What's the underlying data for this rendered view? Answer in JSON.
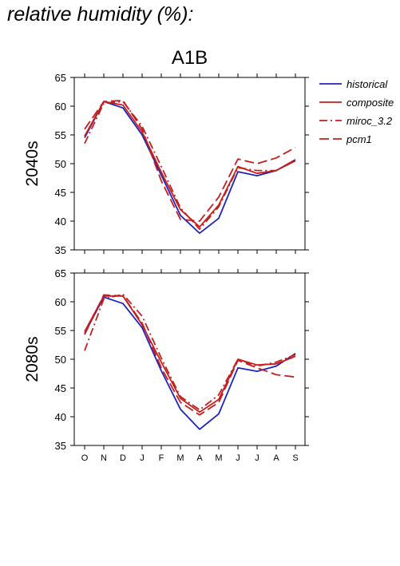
{
  "heading": "relative humidity (%):",
  "chart_data": {
    "type": "line",
    "title": "A1B",
    "months": [
      "O",
      "N",
      "D",
      "J",
      "F",
      "M",
      "A",
      "M",
      "J",
      "J",
      "A",
      "S"
    ],
    "ylim": [
      35,
      65
    ],
    "yticks": [
      35,
      40,
      45,
      50,
      55,
      60,
      65
    ],
    "legend": {
      "placement": "top-right",
      "entries": [
        {
          "name": "historical",
          "color": "#1f24b8",
          "dash": "solid"
        },
        {
          "name": "composite",
          "color": "#c41e1e",
          "dash": "solid"
        },
        {
          "name": "miroc_3.2",
          "color": "#c41e1e",
          "dash": "dashdot"
        },
        {
          "name": "pcm1",
          "color": "#c41e1e",
          "dash": "dashed"
        }
      ]
    },
    "panels": [
      {
        "label": "2040s",
        "series": [
          {
            "name": "historical",
            "values": [
              54.5,
              60.8,
              59.7,
              55.0,
              48.0,
              41.0,
              37.9,
              40.5,
              48.6,
              47.9,
              48.8,
              50.7
            ]
          },
          {
            "name": "composite",
            "values": [
              54.8,
              60.8,
              60.2,
              55.5,
              48.5,
              42.0,
              39.0,
              42.8,
              49.5,
              48.3,
              48.8,
              50.5
            ]
          },
          {
            "name": "miroc_3.2",
            "values": [
              53.5,
              60.5,
              60.8,
              56.5,
              49.5,
              42.3,
              38.6,
              42.5,
              49.3,
              48.8,
              48.8,
              50.7
            ]
          },
          {
            "name": "pcm1",
            "values": [
              56.0,
              60.8,
              61.0,
              56.0,
              47.0,
              40.3,
              40.0,
              44.2,
              50.8,
              50.0,
              51.0,
              52.8
            ]
          }
        ]
      },
      {
        "label": "2080s",
        "series": [
          {
            "name": "historical",
            "values": [
              54.5,
              60.8,
              59.7,
              55.5,
              48.0,
              41.3,
              37.8,
              40.5,
              48.5,
              47.9,
              48.8,
              51.0
            ]
          },
          {
            "name": "composite",
            "values": [
              54.8,
              61.0,
              61.0,
              56.0,
              49.5,
              43.2,
              40.8,
              43.0,
              50.0,
              49.0,
              49.2,
              50.5
            ]
          },
          {
            "name": "miroc_3.2",
            "values": [
              51.5,
              60.5,
              61.3,
              57.5,
              50.2,
              43.5,
              41.2,
              43.8,
              50.0,
              48.8,
              49.5,
              50.8
            ]
          },
          {
            "name": "pcm1",
            "values": [
              54.3,
              61.2,
              61.0,
              56.3,
              48.5,
              42.5,
              40.3,
              42.5,
              49.8,
              48.5,
              47.3,
              46.9
            ]
          }
        ]
      }
    ]
  }
}
